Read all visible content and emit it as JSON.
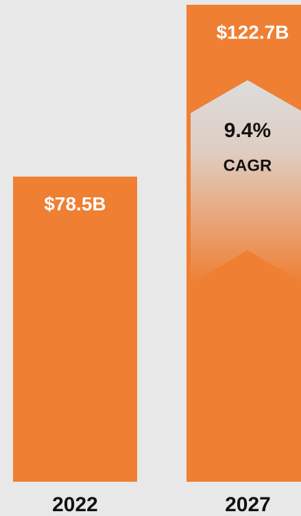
{
  "chart_data": {
    "type": "bar",
    "categories": [
      "2022",
      "2027"
    ],
    "values": [
      78.5,
      122.7
    ],
    "value_labels": [
      "$78.5B",
      "$122.7B"
    ],
    "color": "#ef7f33",
    "annotations": [
      "9.4%",
      "CAGR"
    ]
  }
}
